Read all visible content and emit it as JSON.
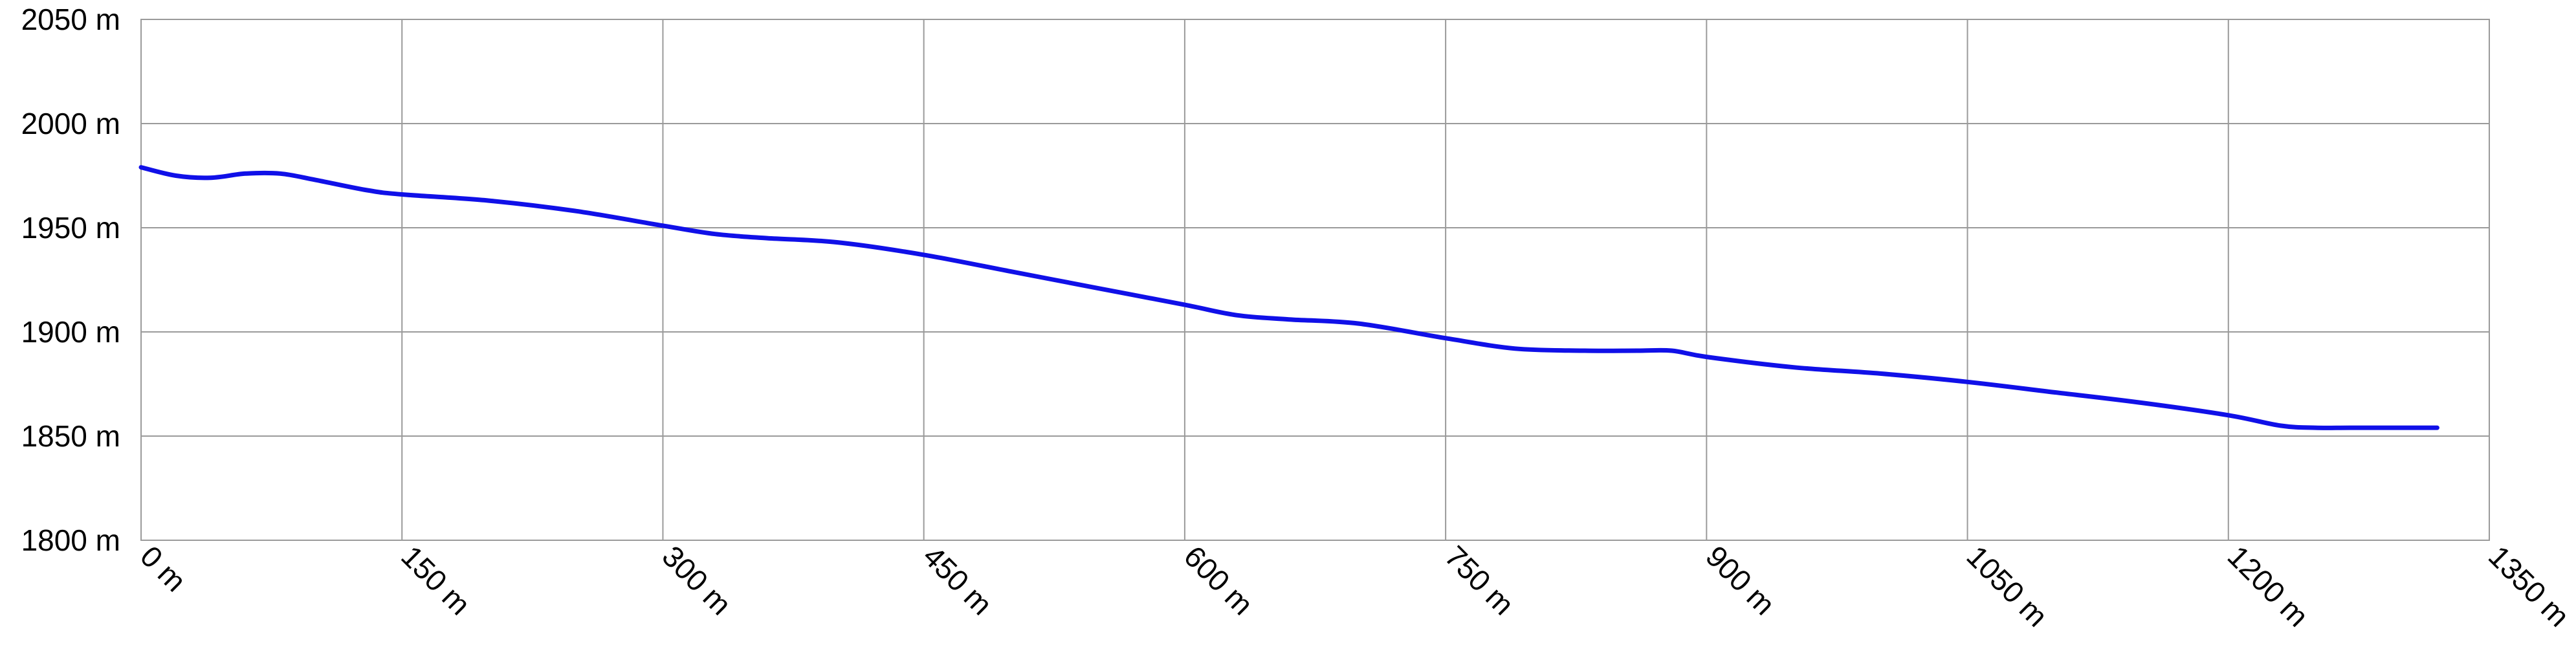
{
  "chart_data": {
    "type": "line",
    "title": "",
    "xlabel": "",
    "ylabel": "",
    "x_unit": "m",
    "y_unit": "m",
    "xlim": [
      0,
      1350
    ],
    "ylim": [
      1800,
      2050
    ],
    "x_ticks": [
      0,
      150,
      300,
      450,
      600,
      750,
      900,
      1050,
      1200,
      1350
    ],
    "y_ticks": [
      1800,
      1850,
      1900,
      1950,
      2000,
      2050
    ],
    "x_tick_labels": [
      "0 m",
      "150 m",
      "300 m",
      "450 m",
      "600 m",
      "750 m",
      "900 m",
      "1050 m",
      "1200 m",
      "1350 m"
    ],
    "y_tick_labels": [
      "1800 m",
      "1850 m",
      "1900 m",
      "1950 m",
      "2000 m",
      "2050 m"
    ],
    "grid": true,
    "legend": "none",
    "series": [
      {
        "color": "#1010e8",
        "x": [
          0,
          20,
          40,
          60,
          80,
          100,
          130,
          150,
          200,
          250,
          300,
          330,
          360,
          400,
          450,
          500,
          550,
          600,
          630,
          660,
          700,
          750,
          790,
          830,
          860,
          880,
          900,
          950,
          1000,
          1050,
          1100,
          1150,
          1200,
          1230,
          1250,
          1270,
          1300,
          1320
        ],
        "y": [
          1979,
          1975,
          1974,
          1976,
          1976,
          1973,
          1968,
          1966,
          1963,
          1958,
          1951,
          1947,
          1945,
          1943,
          1937,
          1929,
          1921,
          1913,
          1908,
          1906,
          1904,
          1897,
          1892,
          1891,
          1891,
          1891,
          1888,
          1883,
          1880,
          1876,
          1871,
          1866,
          1860,
          1855,
          1854,
          1854,
          1854,
          1854
        ]
      }
    ]
  }
}
